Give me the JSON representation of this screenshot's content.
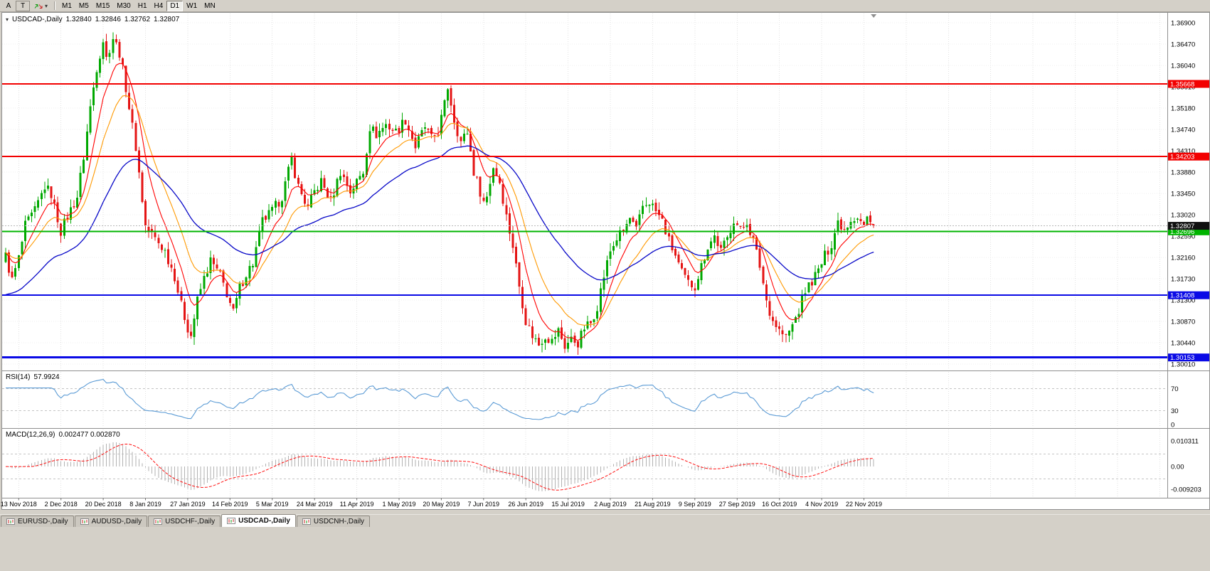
{
  "ui": {
    "toolbar": {
      "buttons": [
        {
          "label": "A",
          "boxed": false
        },
        {
          "label": "T",
          "boxed": true
        }
      ],
      "tool_icon": "trade-arrows-icon",
      "timeframes": [
        "M1",
        "M5",
        "M15",
        "M30",
        "H1",
        "H4",
        "D1",
        "W1",
        "MN"
      ],
      "active_timeframe": "D1"
    },
    "tabs": {
      "items": [
        "EURUSD-,Daily",
        "AUDUSD-,Daily",
        "USDCHF-,Daily",
        "USDCAD-,Daily",
        "USDCNH-,Daily"
      ],
      "active": "USDCAD-,Daily"
    }
  },
  "chart_data": {
    "type": "candlestick",
    "symbol_title": "USDCAD-,Daily",
    "ohlc_display": {
      "open": "1.32840",
      "high": "1.32846",
      "low": "1.32762",
      "close": "1.32807"
    },
    "price_axis": {
      "top": 1.369,
      "step": 0.0043
    },
    "price_axis_labels": [
      "1.36900",
      "1.36470",
      "1.36040",
      "1.35610",
      "1.35180",
      "1.34740",
      "1.34310",
      "1.33880",
      "1.33450",
      "1.33020",
      "1.32590",
      "1.32160",
      "1.31730",
      "1.31300",
      "1.30870",
      "1.30440",
      "1.30010"
    ],
    "x_labels": [
      "13 Nov 2018",
      "2 Dec 2018",
      "20 Dec 2018",
      "8 Jan 2019",
      "27 Jan 2019",
      "14 Feb 2019",
      "5 Mar 2019",
      "24 Mar 2019",
      "11 Apr 2019",
      "1 May 2019",
      "20 May 2019",
      "7 Jun 2019",
      "26 Jun 2019",
      "15 Jul 2019",
      "2 Aug 2019",
      "21 Aug 2019",
      "9 Sep 2019",
      "27 Sep 2019",
      "16 Oct 2019",
      "4 Nov 2019",
      "22 Nov 2019"
    ],
    "x_label_start_bar": 4,
    "x_label_every": 13,
    "bars_total": 268,
    "candle_colors": {
      "up": "#00a800",
      "down": "#e41414"
    },
    "price_anchors": [
      [
        0,
        1.322
      ],
      [
        2,
        1.317
      ],
      [
        4,
        1.3215
      ],
      [
        6,
        1.328
      ],
      [
        9,
        1.331
      ],
      [
        12,
        1.336
      ],
      [
        14,
        1.3345
      ],
      [
        17,
        1.327
      ],
      [
        19,
        1.33
      ],
      [
        22,
        1.334
      ],
      [
        24,
        1.342
      ],
      [
        26,
        1.352
      ],
      [
        28,
        1.36
      ],
      [
        30,
        1.3655
      ],
      [
        31,
        1.3618
      ],
      [
        33,
        1.366
      ],
      [
        35,
        1.363
      ],
      [
        37,
        1.356
      ],
      [
        40,
        1.344
      ],
      [
        43,
        1.328
      ],
      [
        46,
        1.3255
      ],
      [
        49,
        1.323
      ],
      [
        52,
        1.318
      ],
      [
        54,
        1.312
      ],
      [
        56,
        1.3075
      ],
      [
        57,
        1.306
      ],
      [
        59,
        1.313
      ],
      [
        61,
        1.3175
      ],
      [
        63,
        1.321
      ],
      [
        66,
        1.318
      ],
      [
        68,
        1.3145
      ],
      [
        70,
        1.3105
      ],
      [
        72,
        1.3155
      ],
      [
        74,
        1.3185
      ],
      [
        76,
        1.3205
      ],
      [
        79,
        1.329
      ],
      [
        82,
        1.331
      ],
      [
        85,
        1.334
      ],
      [
        88,
        1.3415
      ],
      [
        90,
        1.336
      ],
      [
        93,
        1.3315
      ],
      [
        95,
        1.335
      ],
      [
        97,
        1.337
      ],
      [
        100,
        1.333
      ],
      [
        103,
        1.339
      ],
      [
        106,
        1.335
      ],
      [
        108,
        1.337
      ],
      [
        110,
        1.339
      ],
      [
        112,
        1.348
      ],
      [
        114,
        1.3465
      ],
      [
        117,
        1.3485
      ],
      [
        120,
        1.347
      ],
      [
        123,
        1.3495
      ],
      [
        126,
        1.344
      ],
      [
        129,
        1.348
      ],
      [
        131,
        1.3455
      ],
      [
        133,
        1.347
      ],
      [
        135,
        1.3525
      ],
      [
        136,
        1.356
      ],
      [
        138,
        1.3495
      ],
      [
        140,
        1.345
      ],
      [
        142,
        1.347
      ],
      [
        144,
        1.339
      ],
      [
        147,
        1.333
      ],
      [
        148,
        1.334
      ],
      [
        150,
        1.34
      ],
      [
        152,
        1.337
      ],
      [
        154,
        1.33
      ],
      [
        156,
        1.324
      ],
      [
        158,
        1.316
      ],
      [
        160,
        1.309
      ],
      [
        162,
        1.306
      ],
      [
        164,
        1.3042
      ],
      [
        166,
        1.306
      ],
      [
        168,
        1.3048
      ],
      [
        170,
        1.307
      ],
      [
        172,
        1.3038
      ],
      [
        174,
        1.3052
      ],
      [
        176,
        1.3045
      ],
      [
        178,
        1.3075
      ],
      [
        180,
        1.3085
      ],
      [
        182,
        1.312
      ],
      [
        184,
        1.318
      ],
      [
        186,
        1.323
      ],
      [
        188,
        1.3255
      ],
      [
        190,
        1.327
      ],
      [
        192,
        1.3295
      ],
      [
        194,
        1.327
      ],
      [
        196,
        1.332
      ],
      [
        198,
        1.333
      ],
      [
        200,
        1.331
      ],
      [
        202,
        1.329
      ],
      [
        204,
        1.325
      ],
      [
        206,
        1.322
      ],
      [
        208,
        1.3185
      ],
      [
        210,
        1.3165
      ],
      [
        212,
        1.316
      ],
      [
        214,
        1.32
      ],
      [
        216,
        1.324
      ],
      [
        218,
        1.326
      ],
      [
        220,
        1.323
      ],
      [
        222,
        1.3255
      ],
      [
        224,
        1.3295
      ],
      [
        226,
        1.327
      ],
      [
        228,
        1.329
      ],
      [
        230,
        1.325
      ],
      [
        232,
        1.32
      ],
      [
        234,
        1.313
      ],
      [
        236,
        1.309
      ],
      [
        238,
        1.307
      ],
      [
        240,
        1.3055
      ],
      [
        242,
        1.308
      ],
      [
        244,
        1.311
      ],
      [
        246,
        1.315
      ],
      [
        248,
        1.317
      ],
      [
        250,
        1.319
      ],
      [
        252,
        1.322
      ],
      [
        254,
        1.3245
      ],
      [
        256,
        1.329
      ],
      [
        258,
        1.3275
      ],
      [
        260,
        1.3295
      ],
      [
        262,
        1.33
      ],
      [
        264,
        1.328
      ],
      [
        265,
        1.3295
      ],
      [
        266,
        1.3285
      ],
      [
        267,
        1.32807
      ]
    ],
    "horizontal_lines": [
      {
        "value": 1.35668,
        "label": "1.35668",
        "color": "#f20000",
        "width": 2,
        "role": "resistance"
      },
      {
        "value": 1.34203,
        "label": "1.34203",
        "color": "#f20000",
        "width": 2,
        "role": "resistance"
      },
      {
        "value": 1.32696,
        "label": "1.32696",
        "color": "#00b400",
        "width": 2,
        "role": "level"
      },
      {
        "value": 1.31408,
        "label": "1.31408",
        "color": "#0a0ae6",
        "width": 2,
        "role": "support"
      },
      {
        "value": 1.30153,
        "label": "1.30153",
        "color": "#0a0ae6",
        "width": 3,
        "role": "support"
      }
    ],
    "bid": {
      "value": 1.32807,
      "label": "1.32807",
      "box_color": "#101010",
      "line_color": "#b8b8b8"
    },
    "moving_averages": [
      {
        "name": "ma-fast",
        "period": 8,
        "color": "#ff0000"
      },
      {
        "name": "ma-mid",
        "period": 17,
        "color": "#ff9900"
      },
      {
        "name": "ma-slow",
        "period": 45,
        "color": "#0808c8"
      }
    ],
    "indicators": {
      "rsi": {
        "label": "RSI(14)",
        "period": 14,
        "value_display": "57.9924",
        "color": "#5b9bd5",
        "levels": [
          70,
          30
        ],
        "axis_labels": [
          {
            "text": "70",
            "value": 70
          },
          {
            "text": "30",
            "value": 30
          },
          {
            "text": "0",
            "value": 0
          }
        ]
      },
      "macd": {
        "label": "MACD(12,26,9)",
        "fast": 12,
        "slow": 26,
        "signal": 9,
        "value_display": "0.002477 0.002870",
        "histogram_color": "#b2b2b2",
        "signal_color": "#ff1111",
        "grid_levels": [
          0.005,
          -0.005
        ],
        "axis_labels": [
          {
            "text": "0.010311",
            "value": 0.010311
          },
          {
            "text": "0.00",
            "value": 0
          },
          {
            "text": "-0.009203",
            "value": -0.009203
          }
        ]
      }
    }
  }
}
